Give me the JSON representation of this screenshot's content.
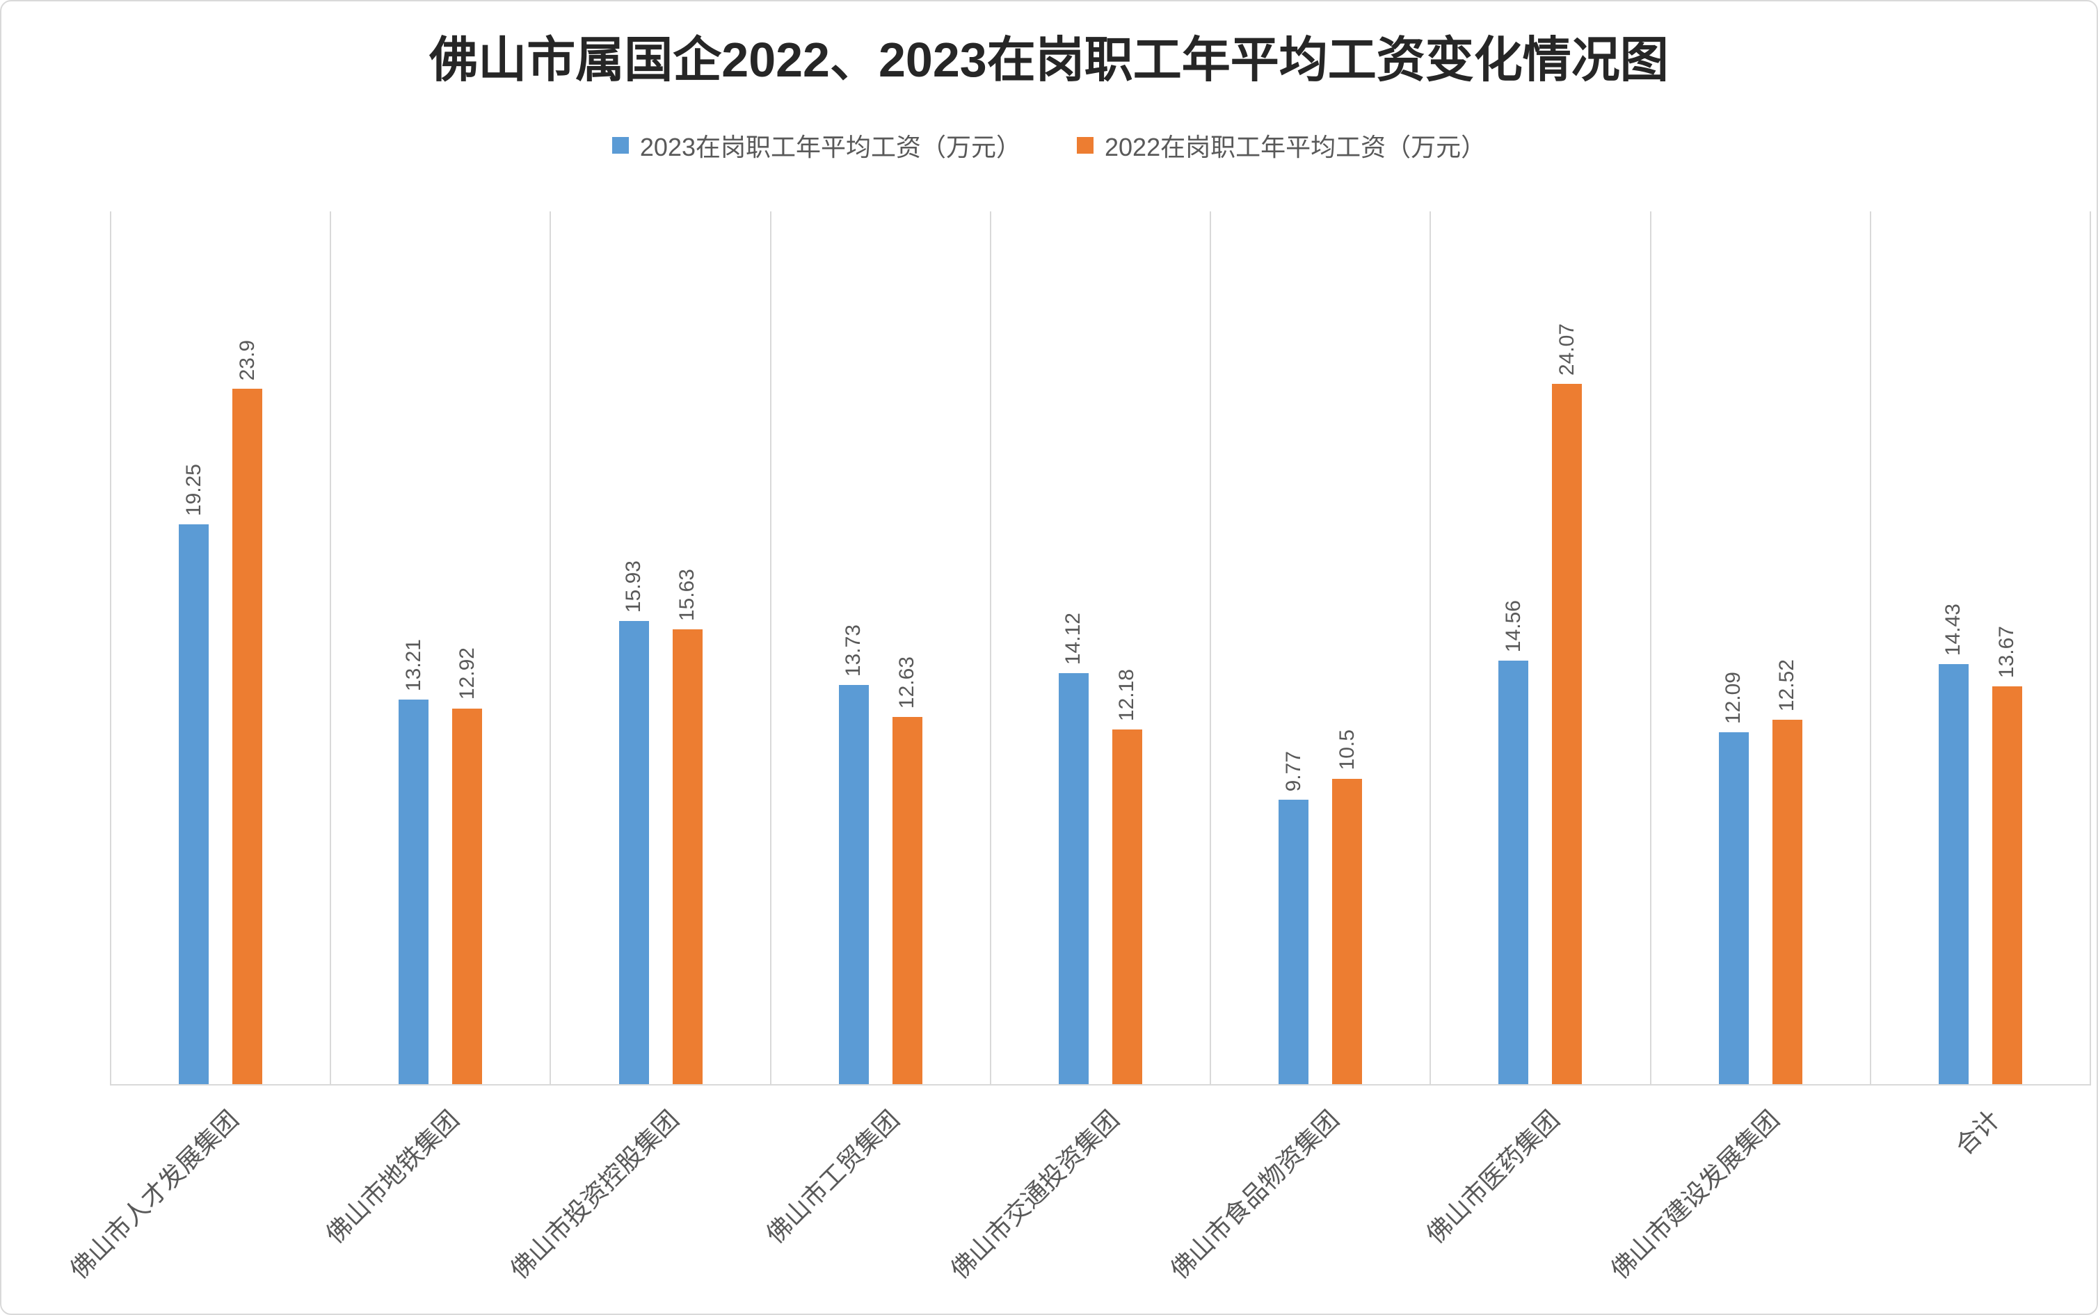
{
  "page": {
    "background": "#ffffff",
    "border_color": "#d9d9d9"
  },
  "chart_data": {
    "type": "bar",
    "title": "佛山市属国企2022、2023在岗职工年平均工资变化情况图",
    "categories": [
      "佛山市人才发展集团",
      "佛山市地铁集团",
      "佛山市投资控股集团",
      "佛山市工贸集团",
      "佛山市交通投资集团",
      "佛山市食品物资集团",
      "佛山市医药集团",
      "佛山市建设发展集团",
      "合计"
    ],
    "series": [
      {
        "name": "2023在岗职工年平均工资（万元）",
        "color": "#5B9BD5",
        "values": [
          19.25,
          13.21,
          15.93,
          13.73,
          14.12,
          9.77,
          14.56,
          12.09,
          14.43
        ]
      },
      {
        "name": "2022在岗职工年平均工资（万元）",
        "color": "#ED7D31",
        "values": [
          23.9,
          12.92,
          15.63,
          12.63,
          12.18,
          10.5,
          24.07,
          12.52,
          13.67
        ]
      }
    ],
    "ylim": [
      0,
      30
    ],
    "xlabel": "",
    "ylabel": "",
    "grid": "vertical-category-boundaries",
    "legend_position": "top",
    "value_labels": "rotated-90",
    "category_labels": "rotated-45",
    "text_color": "#595959",
    "gridline_color": "#d9d9d9"
  }
}
